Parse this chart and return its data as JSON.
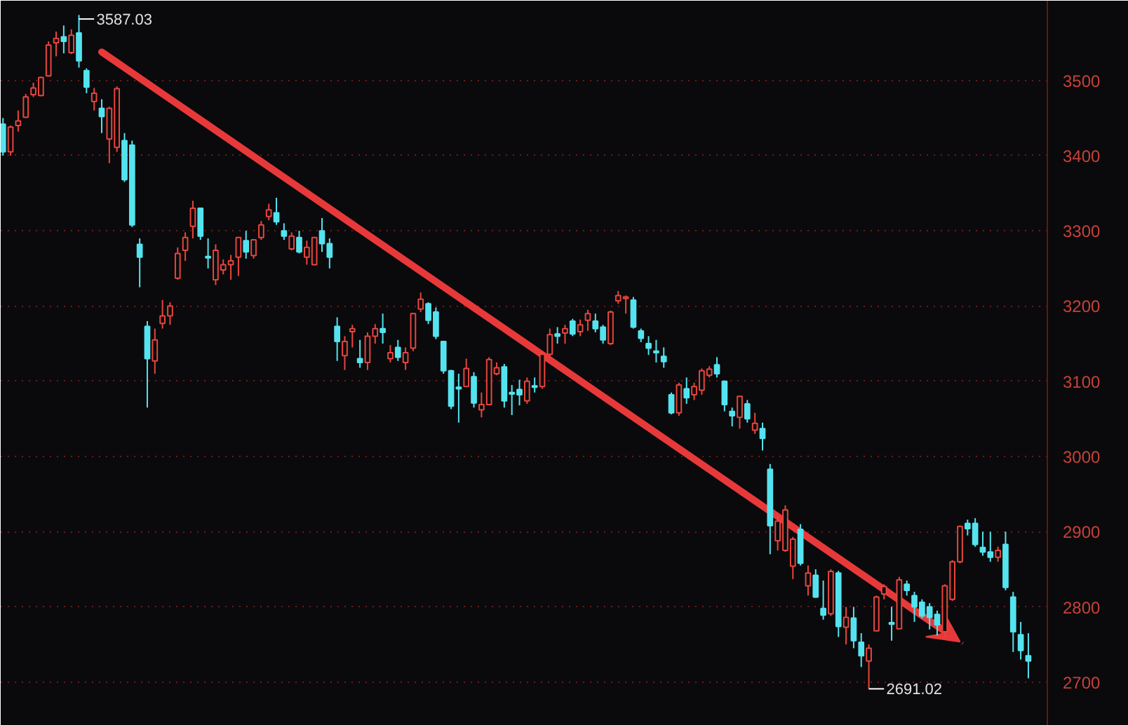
{
  "chart_data": {
    "type": "candlestick",
    "categories": [
      null,
      null,
      null,
      null,
      null,
      null,
      null,
      null,
      null,
      null,
      null,
      null,
      null,
      null,
      null,
      null,
      null,
      null,
      null,
      null,
      null,
      null,
      null,
      null,
      null,
      null,
      null,
      null,
      null,
      null,
      null,
      null,
      null,
      null,
      null,
      null,
      null,
      null,
      null,
      null,
      null,
      null,
      null,
      null,
      null,
      null,
      null,
      null,
      null,
      null,
      null,
      null,
      null,
      null,
      null,
      null,
      null,
      null,
      null,
      null,
      null,
      null,
      null,
      null,
      null,
      null,
      null,
      null,
      null,
      null,
      null,
      null,
      null,
      null,
      null,
      null,
      null,
      null,
      null,
      null,
      null,
      null,
      null,
      null,
      null,
      null,
      null,
      null,
      null,
      null,
      null,
      null,
      null,
      null,
      null,
      null,
      null,
      null,
      null,
      null,
      null,
      null,
      null,
      null,
      null,
      null,
      null,
      null,
      null,
      null,
      null,
      null,
      null,
      null,
      null,
      null,
      null,
      null,
      null,
      null,
      null,
      null,
      null,
      null,
      null,
      null,
      null,
      null,
      null,
      null,
      null,
      null,
      null,
      null,
      null,
      null
    ],
    "ohlc": [
      [
        3442,
        3450,
        3400,
        3405
      ],
      [
        3405,
        3440,
        3400,
        3438
      ],
      [
        3440,
        3460,
        3432,
        3446
      ],
      [
        3451,
        3482,
        3450,
        3478
      ],
      [
        3481,
        3497,
        3478,
        3490
      ],
      [
        3480,
        3505,
        3479,
        3504
      ],
      [
        3506,
        3552,
        3505,
        3547
      ],
      [
        3550,
        3565,
        3532,
        3556
      ],
      [
        3558,
        3573,
        3536,
        3552
      ],
      [
        3537,
        3568,
        3535,
        3560
      ],
      [
        3563,
        3587.03,
        3517,
        3526
      ],
      [
        3513,
        3516,
        3483,
        3491
      ],
      [
        3472,
        3490,
        3460,
        3483
      ],
      [
        3463,
        3475,
        3430,
        3452
      ],
      [
        3422,
        3465,
        3390,
        3463
      ],
      [
        3411,
        3492,
        3405,
        3489
      ],
      [
        3420,
        3430,
        3365,
        3368
      ],
      [
        3414,
        3420,
        3305,
        3308
      ],
      [
        3282,
        3290,
        3225,
        3265
      ],
      [
        3173,
        3180,
        3065,
        3130
      ],
      [
        3127,
        3170,
        3110,
        3155
      ],
      [
        3177,
        3208,
        3170,
        3187
      ],
      [
        3187,
        3205,
        3175,
        3200
      ],
      [
        3237,
        3278,
        3235,
        3270
      ],
      [
        3274,
        3298,
        3260,
        3291
      ],
      [
        3306,
        3340,
        3290,
        3330
      ],
      [
        3330,
        3330,
        3288,
        3293
      ],
      [
        3266,
        3290,
        3250,
        3264
      ],
      [
        3235,
        3282,
        3228,
        3274
      ],
      [
        3248,
        3262,
        3242,
        3255
      ],
      [
        3255,
        3268,
        3235,
        3260
      ],
      [
        3265,
        3292,
        3240,
        3291
      ],
      [
        3287,
        3300,
        3263,
        3272
      ],
      [
        3267,
        3289,
        3263,
        3288
      ],
      [
        3291,
        3313,
        3288,
        3308
      ],
      [
        3319,
        3336,
        3314,
        3328
      ],
      [
        3324,
        3344,
        3308,
        3312
      ],
      [
        3300,
        3310,
        3288,
        3293
      ],
      [
        3276,
        3298,
        3274,
        3293
      ],
      [
        3291,
        3300,
        3270,
        3272
      ],
      [
        3265,
        3287,
        3255,
        3278
      ],
      [
        3255,
        3292,
        3254,
        3291
      ],
      [
        3300,
        3317,
        3272,
        3283
      ],
      [
        3283,
        3290,
        3250,
        3265
      ],
      [
        3173,
        3185,
        3127,
        3153
      ],
      [
        3134,
        3160,
        3115,
        3153
      ],
      [
        3166,
        3175,
        3145,
        3170
      ],
      [
        3130,
        3155,
        3118,
        3125
      ],
      [
        3125,
        3165,
        3115,
        3160
      ],
      [
        3160,
        3176,
        3150,
        3170
      ],
      [
        3170,
        3190,
        3150,
        3165
      ],
      [
        3130,
        3148,
        3125,
        3138
      ],
      [
        3145,
        3155,
        3127,
        3132
      ],
      [
        3125,
        3145,
        3115,
        3138
      ],
      [
        3144,
        3191,
        3140,
        3190
      ],
      [
        3196,
        3218,
        3192,
        3209
      ],
      [
        3203,
        3205,
        3176,
        3181
      ],
      [
        3192,
        3198,
        3156,
        3160
      ],
      [
        3153,
        3153,
        3110,
        3114
      ],
      [
        3114,
        3115,
        3063,
        3067
      ],
      [
        3092,
        3110,
        3045,
        3090
      ],
      [
        3093,
        3130,
        3093,
        3117
      ],
      [
        3106,
        3112,
        3065,
        3071
      ],
      [
        3062,
        3085,
        3052,
        3069
      ],
      [
        3069,
        3132,
        3069,
        3129
      ],
      [
        3110,
        3125,
        3108,
        3118
      ],
      [
        3119,
        3123,
        3065,
        3074
      ],
      [
        3085,
        3095,
        3055,
        3083
      ],
      [
        3089,
        3102,
        3068,
        3082
      ],
      [
        3074,
        3105,
        3070,
        3100
      ],
      [
        3094,
        3105,
        3085,
        3092
      ],
      [
        3093,
        3140,
        3090,
        3136
      ],
      [
        3136,
        3170,
        3132,
        3162
      ],
      [
        3163,
        3172,
        3150,
        3160
      ],
      [
        3164,
        3175,
        3150,
        3170
      ],
      [
        3180,
        3183,
        3160,
        3163
      ],
      [
        3166,
        3182,
        3160,
        3175
      ],
      [
        3181,
        3195,
        3167,
        3190
      ],
      [
        3180,
        3190,
        3165,
        3170
      ],
      [
        3172,
        3175,
        3150,
        3155
      ],
      [
        3150,
        3194,
        3148,
        3192
      ],
      [
        3207,
        3220,
        3203,
        3214
      ],
      [
        3210,
        3214,
        3190,
        3212
      ],
      [
        3208,
        3212,
        3170,
        3172
      ],
      [
        3167,
        3170,
        3152,
        3157
      ],
      [
        3150,
        3160,
        3135,
        3144
      ],
      [
        3140,
        3155,
        3125,
        3138
      ],
      [
        3133,
        3145,
        3118,
        3126
      ],
      [
        3082,
        3085,
        3056,
        3058
      ],
      [
        3058,
        3098,
        3054,
        3095
      ],
      [
        3090,
        3105,
        3070,
        3078
      ],
      [
        3082,
        3098,
        3075,
        3093
      ],
      [
        3088,
        3117,
        3082,
        3114
      ],
      [
        3108,
        3120,
        3105,
        3116
      ],
      [
        3122,
        3132,
        3105,
        3110
      ],
      [
        3100,
        3100,
        3060,
        3069
      ],
      [
        3060,
        3065,
        3040,
        3054
      ],
      [
        3052,
        3080,
        3037,
        3080
      ],
      [
        3070,
        3075,
        3045,
        3050
      ],
      [
        3035,
        3058,
        3030,
        3044
      ],
      [
        3037,
        3045,
        3008,
        3024
      ],
      [
        2983,
        2990,
        2870,
        2908
      ],
      [
        2888,
        2922,
        2875,
        2914
      ],
      [
        2875,
        2935,
        2873,
        2929
      ],
      [
        2854,
        2893,
        2837,
        2890
      ],
      [
        2903,
        2910,
        2855,
        2858
      ],
      [
        2828,
        2855,
        2815,
        2845
      ],
      [
        2842,
        2850,
        2812,
        2813
      ],
      [
        2798,
        2835,
        2783,
        2789
      ],
      [
        2791,
        2850,
        2788,
        2847
      ],
      [
        2845,
        2848,
        2760,
        2774
      ],
      [
        2773,
        2800,
        2750,
        2786
      ],
      [
        2785,
        2800,
        2745,
        2755
      ],
      [
        2753,
        2765,
        2720,
        2735
      ],
      [
        2728,
        2750,
        2691.02,
        2745
      ],
      [
        2768,
        2815,
        2768,
        2813
      ],
      [
        2817,
        2830,
        2810,
        2827
      ],
      [
        2779,
        2800,
        2755,
        2777
      ],
      [
        2771,
        2840,
        2770,
        2836
      ],
      [
        2830,
        2835,
        2815,
        2822
      ],
      [
        2815,
        2820,
        2780,
        2800
      ],
      [
        2806,
        2810,
        2785,
        2788
      ],
      [
        2800,
        2805,
        2770,
        2786
      ],
      [
        2790,
        2795,
        2762,
        2776
      ],
      [
        2767,
        2830,
        2760,
        2828
      ],
      [
        2810,
        2862,
        2808,
        2860
      ],
      [
        2860,
        2908,
        2858,
        2907
      ],
      [
        2911,
        2916,
        2895,
        2904
      ],
      [
        2911,
        2918,
        2880,
        2883
      ],
      [
        2879,
        2900,
        2868,
        2873
      ],
      [
        2873,
        2900,
        2860,
        2866
      ],
      [
        2866,
        2880,
        2860,
        2875
      ],
      [
        2883,
        2900,
        2822,
        2826
      ],
      [
        2813,
        2820,
        2740,
        2767
      ],
      [
        2763,
        2780,
        2730,
        2742
      ],
      [
        2735,
        2765,
        2705,
        2728
      ]
    ],
    "colors": [
      "#54e3ef",
      "#e8453c",
      "#e8453c",
      "#e8453c",
      "#e8453c",
      "#e8453c",
      "#e8453c",
      "#e8453c",
      "#54e3ef",
      "#e8453c",
      "#54e3ef",
      "#54e3ef",
      "#e8453c",
      "#54e3ef",
      "#e8453c",
      "#e8453c",
      "#54e3ef",
      "#54e3ef",
      "#54e3ef",
      "#54e3ef",
      "#e8453c",
      "#e8453c",
      "#e8453c",
      "#e8453c",
      "#e8453c",
      "#e8453c",
      "#54e3ef",
      "#54e3ef",
      "#e8453c",
      "#e8453c",
      "#e8453c",
      "#e8453c",
      "#54e3ef",
      "#e8453c",
      "#e8453c",
      "#e8453c",
      "#54e3ef",
      "#54e3ef",
      "#e8453c",
      "#54e3ef",
      "#e8453c",
      "#e8453c",
      "#54e3ef",
      "#54e3ef",
      "#54e3ef",
      "#e8453c",
      "#e8453c",
      "#54e3ef",
      "#e8453c",
      "#e8453c",
      "#54e3ef",
      "#e8453c",
      "#54e3ef",
      "#e8453c",
      "#e8453c",
      "#e8453c",
      "#54e3ef",
      "#54e3ef",
      "#54e3ef",
      "#54e3ef",
      "#54e3ef",
      "#e8453c",
      "#54e3ef",
      "#e8453c",
      "#e8453c",
      "#e8453c",
      "#54e3ef",
      "#54e3ef",
      "#54e3ef",
      "#e8453c",
      "#54e3ef",
      "#e8453c",
      "#e8453c",
      "#54e3ef",
      "#e8453c",
      "#54e3ef",
      "#e8453c",
      "#e8453c",
      "#54e3ef",
      "#54e3ef",
      "#e8453c",
      "#e8453c",
      "#e8453c",
      "#54e3ef",
      "#54e3ef",
      "#54e3ef",
      "#54e3ef",
      "#54e3ef",
      "#54e3ef",
      "#e8453c",
      "#54e3ef",
      "#e8453c",
      "#e8453c",
      "#e8453c",
      "#54e3ef",
      "#54e3ef",
      "#54e3ef",
      "#e8453c",
      "#54e3ef",
      "#e8453c",
      "#54e3ef",
      "#54e3ef",
      "#e8453c",
      "#e8453c",
      "#e8453c",
      "#54e3ef",
      "#e8453c",
      "#54e3ef",
      "#54e3ef",
      "#e8453c",
      "#54e3ef",
      "#e8453c",
      "#54e3ef",
      "#54e3ef",
      "#e8453c",
      "#e8453c",
      "#e8453c",
      "#54e3ef",
      "#e8453c",
      "#54e3ef",
      "#54e3ef",
      "#54e3ef",
      "#54e3ef",
      "#54e3ef",
      "#e8453c",
      "#e8453c",
      "#e8453c",
      "#54e3ef",
      "#54e3ef",
      "#54e3ef",
      "#54e3ef",
      "#e8453c",
      "#54e3ef",
      "#54e3ef",
      "#54e3ef",
      "#54e3ef"
    ],
    "ylim": [
      2642,
      3606
    ],
    "yticks": [
      2700,
      2800,
      2900,
      3000,
      3100,
      3200,
      3300,
      3400,
      3500
    ],
    "grid": "y",
    "annotations": [
      "3587.03",
      "2691.02"
    ]
  }
}
